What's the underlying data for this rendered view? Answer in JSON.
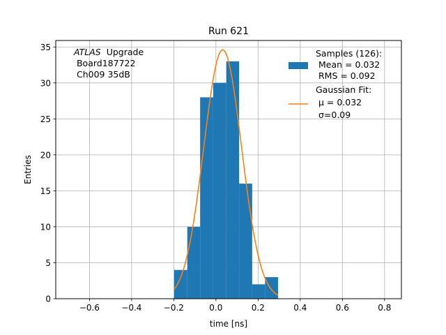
{
  "chart_data": {
    "type": "bar",
    "title": "Run 621",
    "xlabel": "time [ns]",
    "ylabel": "Entries",
    "xlim": [
      -0.76,
      0.88
    ],
    "ylim": [
      0,
      35.9
    ],
    "xticks": [
      -0.6,
      -0.4,
      -0.2,
      0.0,
      0.2,
      0.4,
      0.6,
      0.8
    ],
    "xtick_labels": [
      "−0.6",
      "−0.4",
      "−0.2",
      "0.0",
      "0.2",
      "0.4",
      "0.6",
      "0.8"
    ],
    "yticks": [
      0,
      5,
      10,
      15,
      20,
      25,
      30,
      35
    ],
    "ytick_labels": [
      "0",
      "5",
      "10",
      "15",
      "20",
      "25",
      "30",
      "35"
    ],
    "grid": true,
    "histogram": {
      "name": "Samples (126):",
      "color": "#1f77b4",
      "bins": [
        {
          "x0": -0.198,
          "x1": -0.136,
          "count": 4
        },
        {
          "x0": -0.136,
          "x1": -0.075,
          "count": 10
        },
        {
          "x0": -0.075,
          "x1": -0.013,
          "count": 28
        },
        {
          "x0": -0.013,
          "x1": 0.049,
          "count": 30
        },
        {
          "x0": 0.049,
          "x1": 0.11,
          "count": 33
        },
        {
          "x0": 0.11,
          "x1": 0.172,
          "count": 16
        },
        {
          "x0": 0.172,
          "x1": 0.233,
          "count": 2
        },
        {
          "x0": 0.233,
          "x1": 0.295,
          "count": 3
        }
      ]
    },
    "fit": {
      "name": "Gaussian Fit:",
      "color": "#ff7f0e",
      "mu": 0.032,
      "sigma": 0.09,
      "peak": 34.6,
      "x_range": [
        -0.198,
        0.295
      ]
    },
    "annotation_lines": [
      "Upgrade",
      " Board187722",
      " Ch009 35dB"
    ],
    "annotation_italic": "ATLAS",
    "legend": {
      "placement": "top-right",
      "hist_lines": [
        "Samples (126):",
        " Mean = 0.032",
        " RMS = 0.092"
      ],
      "fit_lines": [
        "Gaussian Fit:",
        " μ = 0.032",
        " σ=0.09"
      ]
    }
  }
}
